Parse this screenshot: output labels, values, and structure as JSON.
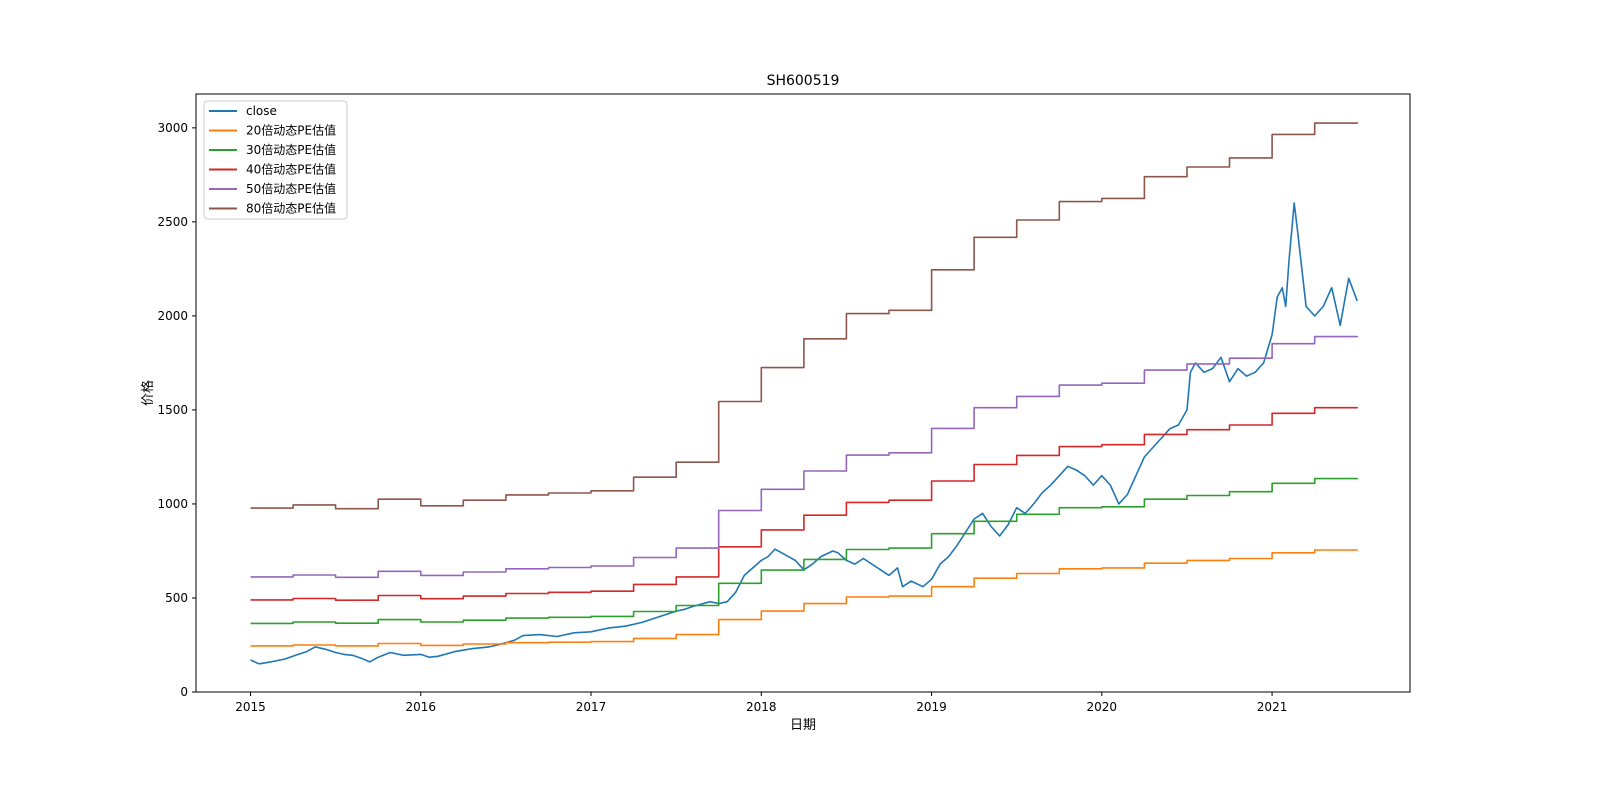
{
  "chart_data": {
    "type": "line",
    "title": "SH600519",
    "xlabel": "日期",
    "ylabel": "价格",
    "xlim": [
      2014.68,
      2021.81
    ],
    "ylim": [
      0,
      3180
    ],
    "xticks": [
      2015,
      2016,
      2017,
      2018,
      2019,
      2020,
      2021
    ],
    "xtick_labels": [
      "2015",
      "2016",
      "2017",
      "2018",
      "2019",
      "2020",
      "2021"
    ],
    "yticks": [
      0,
      500,
      1000,
      1500,
      2000,
      2500,
      3000
    ],
    "ytick_labels": [
      "0",
      "500",
      "1000",
      "1500",
      "2000",
      "2500",
      "3000"
    ],
    "grid": false,
    "legend_position": "top-left",
    "series": [
      {
        "name": "close",
        "color": "#1f77b4",
        "style": "line",
        "x": [
          2015.0,
          2015.05,
          2015.12,
          2015.2,
          2015.28,
          2015.33,
          2015.38,
          2015.45,
          2015.5,
          2015.55,
          2015.6,
          2015.65,
          2015.7,
          2015.75,
          2015.82,
          2015.9,
          2016.0,
          2016.05,
          2016.1,
          2016.2,
          2016.3,
          2016.4,
          2016.45,
          2016.55,
          2016.6,
          2016.7,
          2016.8,
          2016.9,
          2017.0,
          2017.1,
          2017.2,
          2017.3,
          2017.4,
          2017.5,
          2017.55,
          2017.6,
          2017.7,
          2017.75,
          2017.8,
          2017.85,
          2017.9,
          2017.95,
          2018.0,
          2018.04,
          2018.08,
          2018.12,
          2018.2,
          2018.25,
          2018.3,
          2018.35,
          2018.42,
          2018.45,
          2018.5,
          2018.55,
          2018.6,
          2018.7,
          2018.75,
          2018.8,
          2018.83,
          2018.88,
          2018.95,
          2019.0,
          2019.05,
          2019.1,
          2019.15,
          2019.2,
          2019.25,
          2019.3,
          2019.35,
          2019.4,
          2019.45,
          2019.5,
          2019.55,
          2019.6,
          2019.65,
          2019.7,
          2019.75,
          2019.8,
          2019.85,
          2019.9,
          2019.95,
          2020.0,
          2020.05,
          2020.1,
          2020.15,
          2020.2,
          2020.25,
          2020.3,
          2020.35,
          2020.4,
          2020.45,
          2020.5,
          2020.52,
          2020.55,
          2020.6,
          2020.65,
          2020.7,
          2020.75,
          2020.8,
          2020.85,
          2020.9,
          2020.95,
          2021.0,
          2021.03,
          2021.06,
          2021.08,
          2021.1,
          2021.13,
          2021.15,
          2021.2,
          2021.25,
          2021.3,
          2021.35,
          2021.4,
          2021.45,
          2021.5
        ],
        "y": [
          170,
          150,
          160,
          175,
          200,
          215,
          240,
          225,
          210,
          200,
          195,
          180,
          160,
          185,
          210,
          195,
          200,
          185,
          190,
          215,
          230,
          240,
          250,
          275,
          300,
          305,
          295,
          315,
          320,
          340,
          350,
          370,
          400,
          430,
          440,
          455,
          480,
          470,
          480,
          530,
          620,
          660,
          700,
          720,
          760,
          740,
          700,
          650,
          680,
          720,
          750,
          740,
          700,
          680,
          710,
          650,
          620,
          660,
          560,
          590,
          560,
          600,
          680,
          720,
          780,
          850,
          920,
          950,
          880,
          830,
          890,
          980,
          950,
          1000,
          1060,
          1100,
          1150,
          1200,
          1180,
          1150,
          1100,
          1150,
          1100,
          1000,
          1050,
          1150,
          1250,
          1300,
          1350,
          1400,
          1420,
          1500,
          1700,
          1750,
          1700,
          1720,
          1780,
          1650,
          1720,
          1680,
          1700,
          1750,
          1900,
          2100,
          2150,
          2050,
          2300,
          2600,
          2450,
          2050,
          2000,
          2050,
          2150,
          1950,
          2200,
          2080
        ]
      },
      {
        "name": "20倍动态PE估值",
        "color": "#ff7f0e",
        "style": "step",
        "x": [
          2015.0,
          2015.25,
          2015.5,
          2015.75,
          2016.0,
          2016.25,
          2016.5,
          2016.75,
          2017.0,
          2017.25,
          2017.5,
          2017.75,
          2018.0,
          2018.25,
          2018.5,
          2018.75,
          2019.0,
          2019.25,
          2019.5,
          2019.75,
          2020.0,
          2020.25,
          2020.5,
          2020.75,
          2021.0,
          2021.25,
          2021.5
        ],
        "y": [
          245,
          250,
          245,
          258,
          248,
          255,
          262,
          265,
          268,
          285,
          305,
          385,
          430,
          470,
          505,
          510,
          560,
          605,
          630,
          655,
          660,
          685,
          700,
          710,
          740,
          755,
          758
        ]
      },
      {
        "name": "30倍动态PE估值",
        "color": "#2ca02c",
        "style": "step",
        "x": [
          2015.0,
          2015.25,
          2015.5,
          2015.75,
          2016.0,
          2016.25,
          2016.5,
          2016.75,
          2017.0,
          2017.25,
          2017.5,
          2017.75,
          2018.0,
          2018.25,
          2018.5,
          2018.75,
          2019.0,
          2019.25,
          2019.5,
          2019.75,
          2020.0,
          2020.25,
          2020.5,
          2020.75,
          2021.0,
          2021.25,
          2021.5
        ],
        "y": [
          365,
          372,
          366,
          385,
          372,
          382,
          393,
          397,
          402,
          428,
          460,
          578,
          648,
          705,
          758,
          765,
          842,
          908,
          945,
          980,
          985,
          1025,
          1045,
          1065,
          1110,
          1135,
          1138
        ]
      },
      {
        "name": "40倍动态PE估值",
        "color": "#d62728",
        "style": "step",
        "x": [
          2015.0,
          2015.25,
          2015.5,
          2015.75,
          2016.0,
          2016.25,
          2016.5,
          2016.75,
          2017.0,
          2017.25,
          2017.5,
          2017.75,
          2018.0,
          2018.25,
          2018.5,
          2018.75,
          2019.0,
          2019.25,
          2019.5,
          2019.75,
          2020.0,
          2020.25,
          2020.5,
          2020.75,
          2021.0,
          2021.25,
          2021.5
        ],
        "y": [
          490,
          497,
          488,
          513,
          496,
          510,
          524,
          530,
          536,
          572,
          612,
          772,
          862,
          940,
          1008,
          1020,
          1122,
          1210,
          1258,
          1305,
          1315,
          1370,
          1395,
          1420,
          1482,
          1512,
          1515
        ]
      },
      {
        "name": "50倍动态PE估值",
        "color": "#9467bd",
        "style": "step",
        "x": [
          2015.0,
          2015.25,
          2015.5,
          2015.75,
          2016.0,
          2016.25,
          2016.5,
          2016.75,
          2017.0,
          2017.25,
          2017.5,
          2017.75,
          2018.0,
          2018.25,
          2018.5,
          2018.75,
          2019.0,
          2019.25,
          2019.5,
          2019.75,
          2020.0,
          2020.25,
          2020.5,
          2020.75,
          2021.0,
          2021.25,
          2021.5
        ],
        "y": [
          612,
          622,
          610,
          642,
          620,
          638,
          655,
          662,
          670,
          715,
          765,
          965,
          1078,
          1175,
          1260,
          1272,
          1402,
          1512,
          1572,
          1632,
          1642,
          1712,
          1745,
          1775,
          1852,
          1890,
          1893
        ]
      },
      {
        "name": "80倍动态PE估值",
        "color": "#8c564b",
        "style": "step",
        "x": [
          2015.0,
          2015.25,
          2015.5,
          2015.75,
          2016.0,
          2016.25,
          2016.5,
          2016.75,
          2017.0,
          2017.25,
          2017.5,
          2017.75,
          2018.0,
          2018.25,
          2018.5,
          2018.75,
          2019.0,
          2019.25,
          2019.5,
          2019.75,
          2020.0,
          2020.25,
          2020.5,
          2020.75,
          2021.0,
          2021.25,
          2021.5
        ],
        "y": [
          978,
          995,
          975,
          1025,
          990,
          1020,
          1048,
          1058,
          1070,
          1142,
          1222,
          1545,
          1725,
          1878,
          2012,
          2030,
          2245,
          2418,
          2510,
          2608,
          2625,
          2740,
          2792,
          2840,
          2965,
          3025,
          3030
        ]
      }
    ]
  }
}
